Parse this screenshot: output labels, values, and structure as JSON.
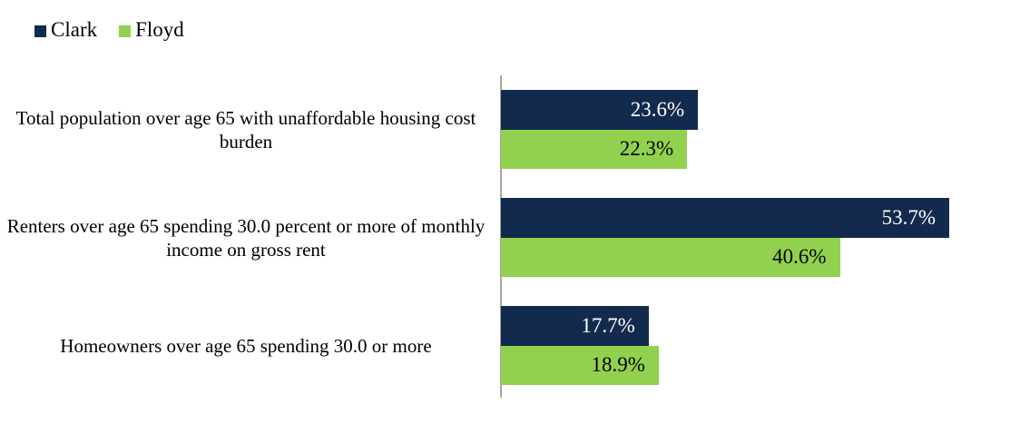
{
  "chart_data": {
    "type": "bar",
    "orientation": "horizontal",
    "title": "",
    "xlabel": "",
    "ylabel": "",
    "xlim": [
      0,
      60
    ],
    "grid": false,
    "legend_position": "top-left",
    "axis_line_color": "#A6A6A6",
    "background_color": "#FFFFFF",
    "categories": [
      "Total population over age 65 with unaffordable housing cost burden",
      "Renters over age 65 spending 30.0 percent or more of monthly income on gross rent",
      "Homeowners over age 65 spending 30.0 or more"
    ],
    "series": [
      {
        "name": "Clark",
        "color": "#122A4D",
        "label_color": "#FFFFFF",
        "values": [
          23.6,
          53.7,
          17.7
        ],
        "labels": [
          "23.6%",
          "53.7%",
          "17.7%"
        ]
      },
      {
        "name": "Floyd",
        "color": "#92D050",
        "label_color": "#000000",
        "values": [
          22.3,
          40.6,
          18.9
        ],
        "labels": [
          "22.3%",
          "40.6%",
          "18.9%"
        ]
      }
    ]
  }
}
